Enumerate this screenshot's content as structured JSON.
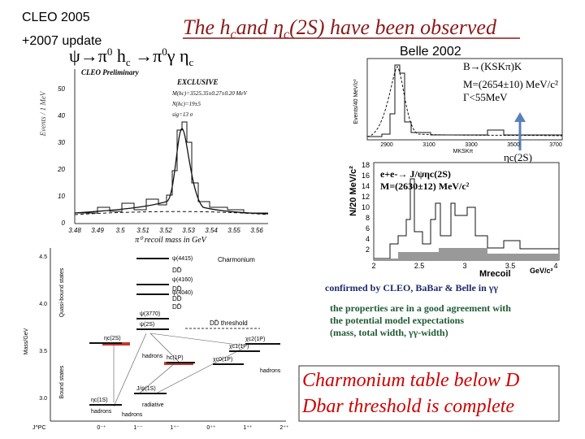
{
  "header": {
    "left_lines": [
      "CLEO 2005",
      "+2007 update"
    ],
    "title": [
      "The h",
      "c",
      "and η",
      "c",
      "(2S) have been observed"
    ],
    "reaction": [
      "ψ→π",
      "0",
      " h",
      "c",
      " →π",
      "0",
      "γ η",
      "c"
    ],
    "belle_label": "Belle 2002"
  },
  "cleo_plot": {
    "y_label": "Events / 1 MeV",
    "y_ticks": [
      "0",
      "10",
      "20",
      "30",
      "40",
      "50"
    ],
    "x_ticks": [
      "3.48",
      "3.49",
      "3.5",
      "3.51",
      "3.52",
      "3.53",
      "3.54",
      "3.55",
      "3.56"
    ],
    "x_label": "π⁰ recoil mass in GeV",
    "tag": "CLEO Preliminary",
    "mode": "EXCLUSIVE",
    "fit_lines": [
      "M(hc)=3525.35±0.27±0.20 MeV",
      "N(hc)=19±5",
      "sig=13 σ"
    ]
  },
  "belle_top": {
    "decay": "B→(KSKπ)K",
    "mass": "M=(2654±10) MeV/c²",
    "width": "Γ<55MeV",
    "y_label": "Events/40 MeV/c²",
    "x_ticks": [
      "2900",
      "3100",
      "3300",
      "3500",
      "3700"
    ],
    "x_label": "MKSKπ"
  },
  "arrow_label": "ηc(2S)",
  "belle_bottom": {
    "process": "e+e-→ J/ψηc(2S)",
    "mass": "M=(2630±12) MeV/c²",
    "y_label": "N/20 MeV/c²",
    "y_ticks": [
      "18",
      "16",
      "14",
      "12",
      "10",
      "8",
      "6",
      "4",
      "2"
    ],
    "x_ticks": [
      "2",
      "2.5",
      "3",
      "3.5",
      "4"
    ],
    "x_label": "Mrecoil",
    "x_unit": "GeV/c²"
  },
  "spectrum": {
    "title": "Charmonium",
    "y_label": "Mass/GeV",
    "y_ticks": [
      "4.5",
      "4.0",
      "3.5",
      "3.0"
    ],
    "bound": "Bound states",
    "quasi": "Quasi-bound states",
    "levels": [
      "ψ(4415)",
      "ψ(4160)",
      "ψ(4040)",
      "ψ(3770)",
      "ψ(2S)",
      "ηc(2S)",
      "hc(1P)",
      "χc0(1P)",
      "χc1(1P)",
      "χc2(1P)",
      "J/ψ(1S)",
      "ηc(1S)"
    ],
    "dd_labels": [
      "DD̄",
      "DD̄",
      "DD̄",
      "DD̄"
    ],
    "threshold": "DD̄ threshold",
    "decays": [
      "hadrons",
      "hadrons",
      "hadrons",
      "radiative",
      "hadrons"
    ],
    "jpc_title": "J^PC",
    "jpc": [
      "0⁻⁺",
      "1⁻⁻",
      "1⁺⁻",
      "0⁺⁺",
      "1⁺⁺",
      "2⁺⁺"
    ]
  },
  "notes": {
    "confirmed": "confirmed by CLEO, BaBar & Belle in γγ",
    "properties": [
      "the properties are in a good agreement with",
      "the potential model expectations",
      "(mass, total width, γγ-width)"
    ],
    "box": [
      "Charmonium table below D",
      "Dbar threshold is complete"
    ]
  }
}
